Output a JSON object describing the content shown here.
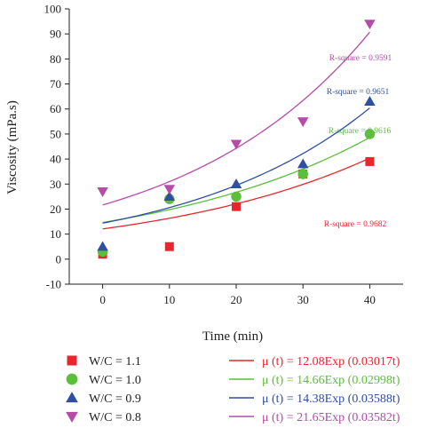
{
  "chart_data": {
    "type": "scatter",
    "title": "",
    "xlabel": "Time (min)",
    "ylabel": "Viscosity (mPa.s)",
    "xlim": [
      -5,
      45
    ],
    "ylim": [
      -10,
      100
    ],
    "xticks": [
      0,
      10,
      20,
      30,
      40
    ],
    "yticks": [
      -10,
      0,
      10,
      20,
      30,
      40,
      50,
      60,
      70,
      80,
      90,
      100
    ],
    "x": [
      0,
      10,
      20,
      30,
      40
    ],
    "grid": false,
    "legend_position": "bottom",
    "series": [
      {
        "name": "W/C = 1.1",
        "marker": "square",
        "color": "#e8262d",
        "values": [
          2,
          5,
          21,
          34,
          39
        ],
        "fit": {
          "a": 12.08,
          "b": 0.03017,
          "label": "μ (t) = 12.08Exp (0.03017t)",
          "r_square": "R-square = 0.9682"
        }
      },
      {
        "name": "W/C = 1.0",
        "marker": "circle",
        "color": "#5cbf3a",
        "values": [
          3,
          24,
          25,
          34,
          50
        ],
        "fit": {
          "a": 14.66,
          "b": 0.02998,
          "label": "μ (t) = 14.66Exp (0.02998t)",
          "r_square": "R-square = 0.9616"
        }
      },
      {
        "name": "W/C = 0.9",
        "marker": "triangle-up",
        "color": "#2e4fa3",
        "values": [
          5,
          25,
          30,
          38,
          63
        ],
        "fit": {
          "a": 14.38,
          "b": 0.03588,
          "label": "μ (t) = 14.38Exp (0.03588t)",
          "r_square": "R-square = 0.9651"
        }
      },
      {
        "name": "W/C = 0.8",
        "marker": "triangle-down",
        "color": "#b64ba8",
        "values": [
          27,
          28,
          46,
          55,
          94
        ],
        "fit": {
          "a": 21.65,
          "b": 0.03582,
          "label": "μ (t) = 21.65Exp (0.03582t)",
          "r_square": "R-square = 0.9591"
        }
      }
    ]
  }
}
